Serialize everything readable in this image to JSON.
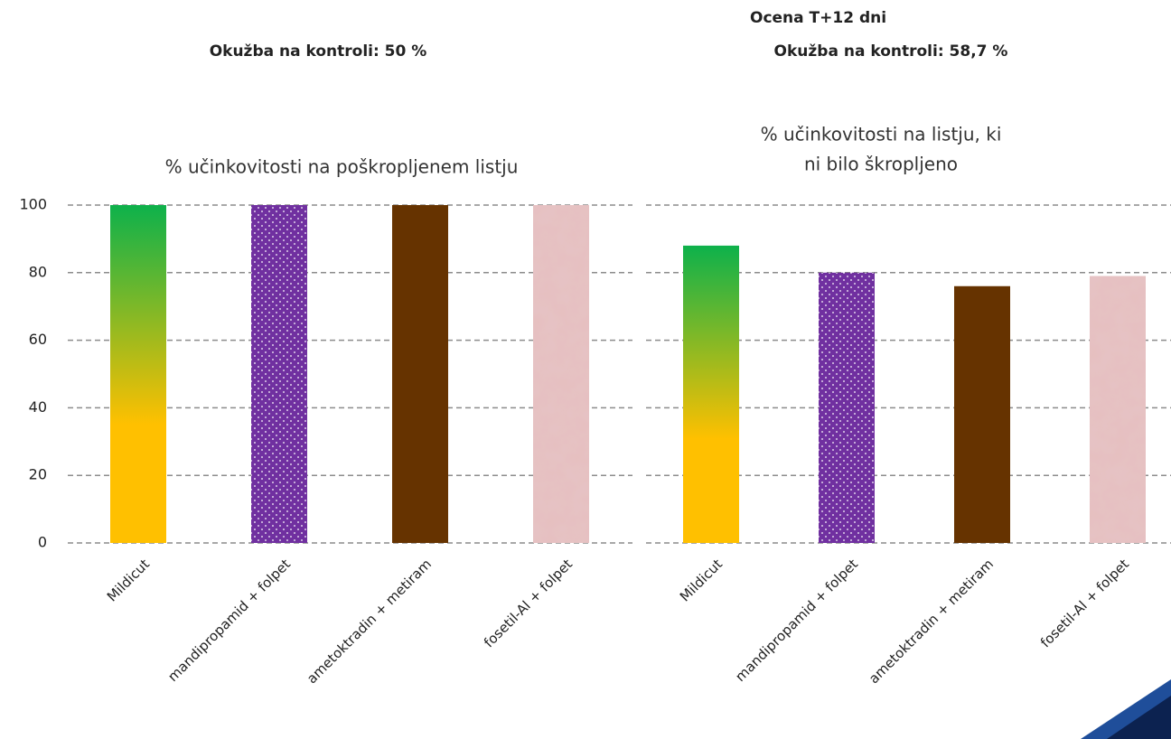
{
  "header": {
    "left": "Okužba na kontroli: 50 %",
    "right": [
      "Ocena T+12 dni",
      "Okužba na kontroli: 58,7 %"
    ]
  },
  "chart_data": [
    {
      "type": "bar",
      "title": [
        "% učinkovitosti na poškropljenem listju"
      ],
      "categories": [
        "Mildicut",
        "mandipropamid + folpet",
        "ametoktradin + metiram",
        "fosetil-Al + folpet"
      ],
      "values": [
        100,
        100,
        100,
        100
      ],
      "fills": [
        {
          "gradient": [
            "#0db14b",
            "#ffc000"
          ]
        },
        {
          "color": "#7030a0",
          "pattern": "dots"
        },
        {
          "color": "#663300"
        },
        {
          "color": "#e6bfc0",
          "pattern": "texture"
        }
      ],
      "ylim": [
        0,
        100
      ],
      "yticks": [
        0,
        20,
        40,
        60,
        80,
        100
      ],
      "grid": true,
      "show_ytick_labels": true
    },
    {
      "type": "bar",
      "title": [
        "% učinkovitosti na listju, ki",
        "ni bilo škropljeno"
      ],
      "categories": [
        "Mildicut",
        "mandipropamid + folpet",
        "ametoktradin + metiram",
        "fosetil-Al + folpet"
      ],
      "values": [
        88,
        80,
        76,
        79
      ],
      "fills": [
        {
          "gradient": [
            "#0db14b",
            "#ffc000"
          ]
        },
        {
          "color": "#7030a0",
          "pattern": "dots"
        },
        {
          "color": "#663300"
        },
        {
          "color": "#e6bfc0",
          "pattern": "texture"
        }
      ],
      "ylim": [
        0,
        100
      ],
      "yticks": [
        0,
        20,
        40,
        60,
        80,
        100
      ],
      "grid": true,
      "show_ytick_labels": false
    }
  ]
}
